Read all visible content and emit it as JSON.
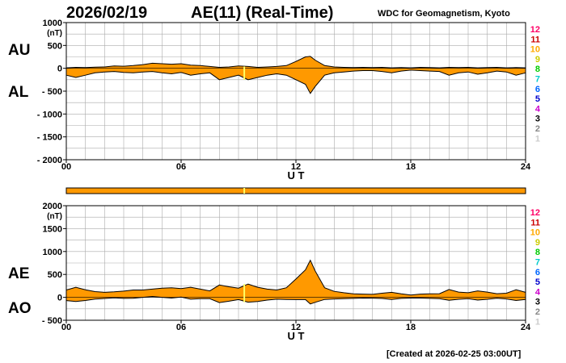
{
  "header": {
    "date": "2026/02/19",
    "title": "AE(11) (Real-Time)",
    "credit": "WDC for Geomagnetism, Kyoto"
  },
  "footer": {
    "created": "[Created at 2026-02-25 03:00UT]"
  },
  "labels": {
    "au": "AU",
    "al": "AL",
    "ae": "AE",
    "ao": "AO"
  },
  "colors": {
    "fill": "#ff9900",
    "outline": "#000000",
    "grid": "#aaaaaa",
    "marker": "#ffff66",
    "station_scale": [
      "#cccccc",
      "#888888",
      "#000000",
      "#cc00cc",
      "#0000cc",
      "#0066ff",
      "#00cccc",
      "#00cc00",
      "#cccc00",
      "#ffaa00",
      "#cc0000",
      "#ff0066"
    ]
  },
  "station_scale": [
    "12",
    "11",
    "10",
    "9",
    "8",
    "7",
    "6",
    "5",
    "4",
    "3",
    "2",
    "1"
  ],
  "chart_data": [
    {
      "type": "area",
      "name": "AU/AL",
      "unit": "(nT)",
      "xlabel": "U T",
      "xlim": [
        0,
        24
      ],
      "ylim": [
        -2000,
        1000
      ],
      "xticks": [
        "00",
        "06",
        "12",
        "18",
        "24"
      ],
      "yticks": [
        "1000",
        "500",
        "0",
        "- 500",
        "- 1000",
        "- 1500",
        "- 2000"
      ],
      "grid": true,
      "marker_hour": 9.3,
      "x": [
        0,
        0.5,
        1,
        1.5,
        2,
        2.5,
        3,
        3.5,
        4,
        4.5,
        5,
        5.5,
        6,
        6.5,
        7,
        7.5,
        8,
        8.5,
        9,
        9.5,
        10,
        10.5,
        11,
        11.5,
        12,
        12.5,
        12.75,
        13,
        13.5,
        14,
        14.5,
        15,
        15.5,
        16,
        16.5,
        17,
        17.5,
        18,
        18.5,
        19,
        19.5,
        20,
        20.5,
        21,
        21.5,
        22,
        22.5,
        23,
        23.5,
        24
      ],
      "series": [
        {
          "name": "AU",
          "values": [
            10,
            20,
            15,
            25,
            30,
            50,
            45,
            60,
            80,
            110,
            100,
            90,
            100,
            70,
            60,
            40,
            20,
            30,
            50,
            40,
            20,
            30,
            40,
            60,
            150,
            250,
            260,
            180,
            60,
            30,
            20,
            15,
            20,
            15,
            20,
            10,
            15,
            10,
            20,
            15,
            10,
            20,
            15,
            20,
            10,
            15,
            20,
            10,
            15,
            10
          ]
        },
        {
          "name": "AL",
          "values": [
            -150,
            -200,
            -150,
            -100,
            -80,
            -70,
            -90,
            -100,
            -80,
            -70,
            -100,
            -120,
            -90,
            -150,
            -120,
            -100,
            -250,
            -200,
            -150,
            -250,
            -200,
            -150,
            -120,
            -150,
            -250,
            -350,
            -550,
            -400,
            -150,
            -100,
            -80,
            -60,
            -50,
            -50,
            -70,
            -100,
            -60,
            -40,
            -50,
            -60,
            -70,
            -150,
            -100,
            -80,
            -130,
            -100,
            -60,
            -80,
            -150,
            -100
          ]
        }
      ]
    },
    {
      "type": "area",
      "name": "AE/AO",
      "unit": "(nT)",
      "xlabel": "U T",
      "xlim": [
        0,
        24
      ],
      "ylim": [
        -500,
        2000
      ],
      "xticks": [
        "00",
        "06",
        "12",
        "18",
        "24"
      ],
      "yticks": [
        "2000",
        "1500",
        "1000",
        "500",
        "0",
        "- 500"
      ],
      "grid": true,
      "marker_hour": 9.3,
      "x": [
        0,
        0.5,
        1,
        1.5,
        2,
        2.5,
        3,
        3.5,
        4,
        4.5,
        5,
        5.5,
        6,
        6.5,
        7,
        7.5,
        8,
        8.5,
        9,
        9.5,
        10,
        10.5,
        11,
        11.5,
        12,
        12.5,
        12.75,
        13,
        13.5,
        14,
        14.5,
        15,
        15.5,
        16,
        16.5,
        17,
        17.5,
        18,
        18.5,
        19,
        19.5,
        20,
        20.5,
        21,
        21.5,
        22,
        22.5,
        23,
        23.5,
        24
      ],
      "series": [
        {
          "name": "AE",
          "values": [
            160,
            220,
            165,
            125,
            110,
            120,
            135,
            160,
            160,
            180,
            200,
            210,
            190,
            220,
            180,
            140,
            270,
            230,
            200,
            290,
            220,
            180,
            160,
            210,
            400,
            600,
            810,
            580,
            210,
            130,
            100,
            75,
            70,
            65,
            90,
            110,
            75,
            50,
            70,
            75,
            80,
            170,
            115,
            100,
            140,
            115,
            80,
            90,
            165,
            110
          ]
        },
        {
          "name": "AO",
          "values": [
            -70,
            -90,
            -68,
            -38,
            -25,
            -10,
            -23,
            -20,
            0,
            20,
            0,
            -15,
            5,
            -40,
            -30,
            -30,
            -115,
            -85,
            -50,
            -105,
            -90,
            -60,
            -40,
            -45,
            -50,
            -50,
            -145,
            -110,
            -45,
            -35,
            -30,
            -23,
            -15,
            -18,
            -25,
            -45,
            -23,
            -15,
            -15,
            -23,
            -30,
            -65,
            -43,
            -30,
            -60,
            -43,
            -20,
            -35,
            -68,
            -45
          ]
        }
      ]
    }
  ]
}
